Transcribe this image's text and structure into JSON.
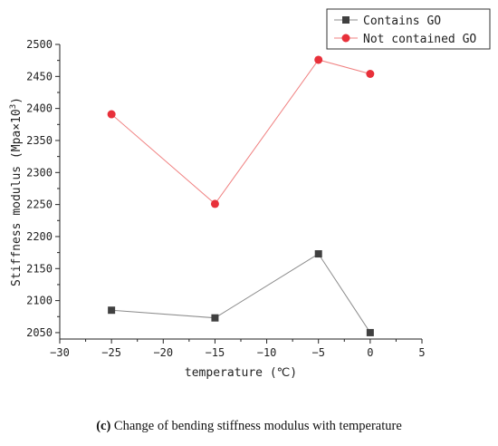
{
  "chart_data": {
    "type": "line",
    "ylabel_main": "Stiffness modulus (Mpa×10",
    "ylabel_sup": "3",
    "ylabel_close": ")",
    "xlabel": "temperature (℃)",
    "xlim": [
      -30,
      5
    ],
    "ylim": [
      2040,
      2500
    ],
    "xticks": [
      -30,
      -25,
      -20,
      -15,
      -10,
      -5,
      0,
      5
    ],
    "yticks": [
      2050,
      2100,
      2150,
      2200,
      2250,
      2300,
      2350,
      2400,
      2450,
      2500
    ],
    "x": [
      -25,
      -15,
      -5,
      0
    ],
    "series": [
      {
        "name": "Contains GO",
        "marker": "square",
        "color": "#404040",
        "line_color": "#8c8c8c",
        "values": [
          2085,
          2073,
          2173,
          2050
        ]
      },
      {
        "name": "Not contained GO",
        "marker": "circle",
        "color": "#e8303a",
        "line_color": "#f08080",
        "values": [
          2391,
          2251,
          2476,
          2454
        ]
      }
    ],
    "legend_position": "top-right",
    "grid": false
  },
  "caption": {
    "label": "(c)",
    "text": " Change of bending stiffness modulus with temperature"
  }
}
